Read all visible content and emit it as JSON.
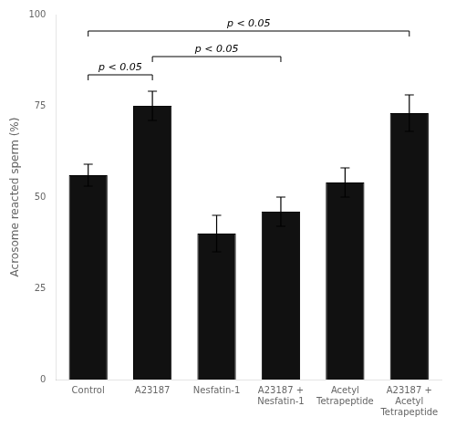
{
  "chart_data": {
    "type": "bar",
    "categories": [
      "Control",
      "A23187",
      "Nesfatin-1",
      "A23187 +\nNesfatin-1",
      "Acetyl\nTetrapeptide",
      "A23187 +\nAcetyl\nTetrapeptide"
    ],
    "values": [
      56,
      75,
      40,
      46,
      54,
      73
    ],
    "errors": [
      3,
      4,
      5,
      4,
      4,
      5
    ],
    "color": "#111111",
    "ylabel": "Acrosome reacted sperm (%)",
    "ylim": [
      0,
      100
    ],
    "yticks": [
      0,
      25,
      50,
      75,
      100
    ],
    "grid": false,
    "annotations": [
      {
        "text": "p < 0.05",
        "x1": "Control",
        "x2": "A23187",
        "y": 82
      },
      {
        "text": "p < 0.05",
        "x1": "A23187",
        "x2": "A23187 +\nNesfatin-1",
        "y": 87
      },
      {
        "text": "p < 0.05",
        "x1": "Control",
        "x2": "A23187 +\nAcetyl\nTetrapeptide",
        "y": 94
      }
    ]
  }
}
